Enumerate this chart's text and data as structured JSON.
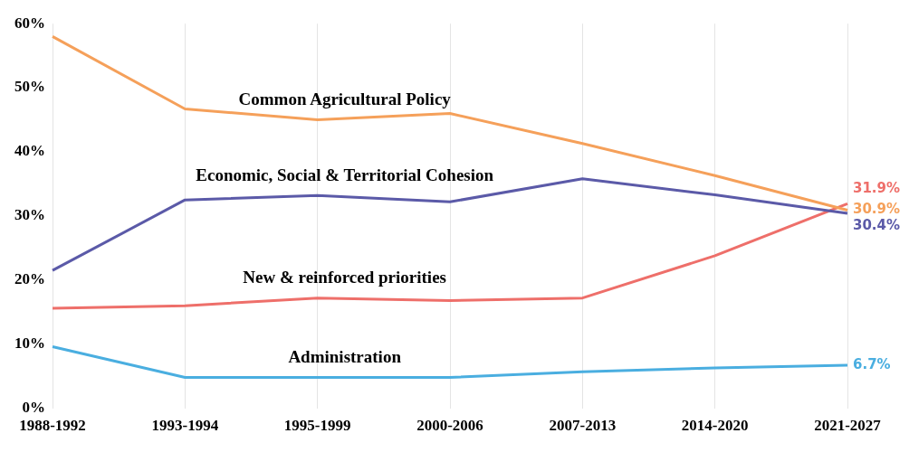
{
  "chart_data": {
    "type": "line",
    "categories": [
      "1988-1992",
      "1993-1994",
      "1995-1999",
      "2000-2006",
      "2007-2013",
      "2014-2020",
      "2021-2027"
    ],
    "ylim": [
      0,
      60
    ],
    "yticks": [
      {
        "value": 0,
        "label": "0%"
      },
      {
        "value": 10,
        "label": "10%"
      },
      {
        "value": 20,
        "label": "20%"
      },
      {
        "value": 30,
        "label": "30%"
      },
      {
        "value": 40,
        "label": "40%"
      },
      {
        "value": 50,
        "label": "50%"
      },
      {
        "value": 60,
        "label": "60%"
      }
    ],
    "grid": "x",
    "legend": false,
    "marker": "none",
    "line_style": "solid",
    "series": [
      {
        "name": "Common Agricultural Policy",
        "color": "#f5a05a",
        "values": [
          58,
          46.7,
          45,
          46,
          41.3,
          36.3,
          30.9
        ],
        "value_labels": [
          null,
          null,
          null,
          null,
          null,
          null,
          "30.9%"
        ]
      },
      {
        "name": "Economic, Social & Territorial Cohesion",
        "color": "#5b5aa8",
        "values": [
          21.5,
          32.5,
          33.2,
          32.2,
          35.8,
          33.3,
          30.4
        ],
        "value_labels": [
          null,
          null,
          null,
          null,
          null,
          null,
          "30.4%"
        ]
      },
      {
        "name": "New & reinforced priorities",
        "color": "#ee6f6a",
        "values": [
          15.6,
          16,
          17.2,
          16.8,
          17.2,
          23.8,
          31.9
        ],
        "value_labels": [
          null,
          null,
          null,
          null,
          null,
          null,
          "31.9%"
        ]
      },
      {
        "name": "Administration",
        "color": "#4aaee0",
        "values": [
          9.6,
          4.8,
          4.8,
          4.8,
          5.7,
          6.3,
          6.7
        ],
        "value_labels": [
          null,
          null,
          null,
          null,
          null,
          null,
          "6.7%"
        ]
      }
    ]
  }
}
